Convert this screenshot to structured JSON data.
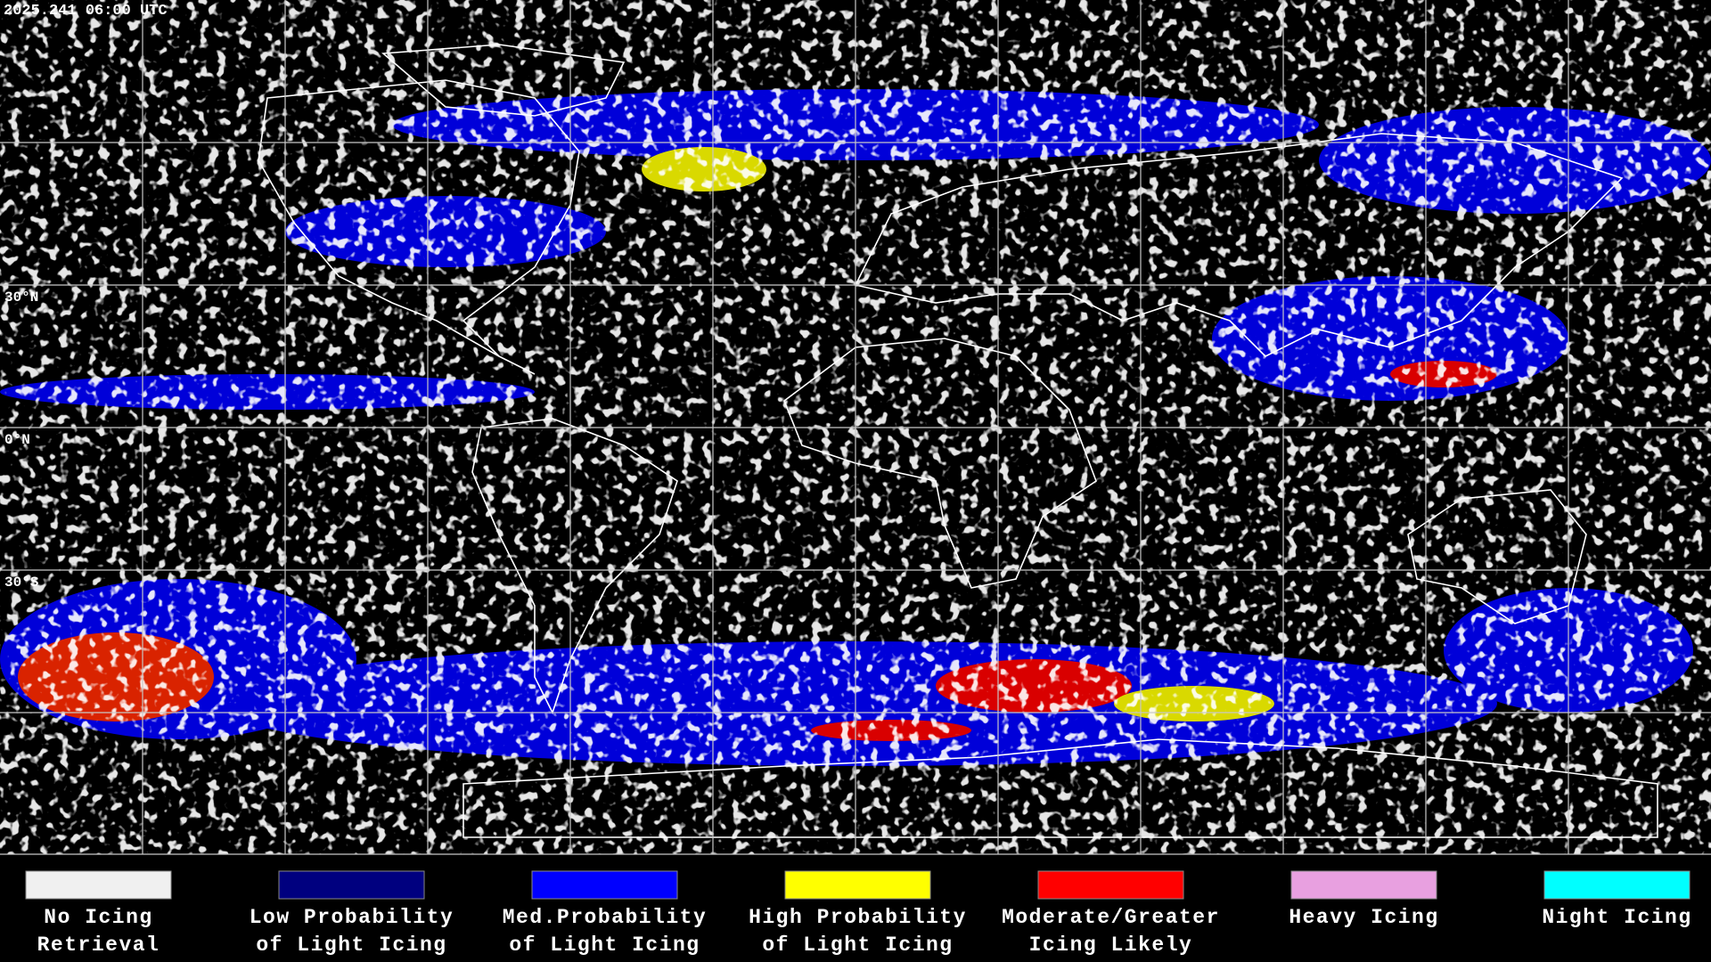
{
  "timestamp": "2025.241 06:00 UTC",
  "lat_labels": [
    "30°N",
    "0°N",
    "30°S"
  ],
  "legend": [
    {
      "lines": [
        "No Icing",
        "Retrieval"
      ],
      "color": "#f0f0f0"
    },
    {
      "lines": [
        "Low Probability",
        "of Light Icing"
      ],
      "color": "#00007f"
    },
    {
      "lines": [
        "Med.Probability",
        "of Light Icing"
      ],
      "color": "#0000ff"
    },
    {
      "lines": [
        "High Probability",
        "of Light Icing"
      ],
      "color": "#ffff00"
    },
    {
      "lines": [
        "Moderate/Greater",
        "Icing Likely"
      ],
      "color": "#ff0000"
    },
    {
      "lines": [
        "Heavy Icing"
      ],
      "color": "#e8a0e0"
    },
    {
      "lines": [
        "Night Icing"
      ],
      "color": "#00ffff"
    }
  ]
}
